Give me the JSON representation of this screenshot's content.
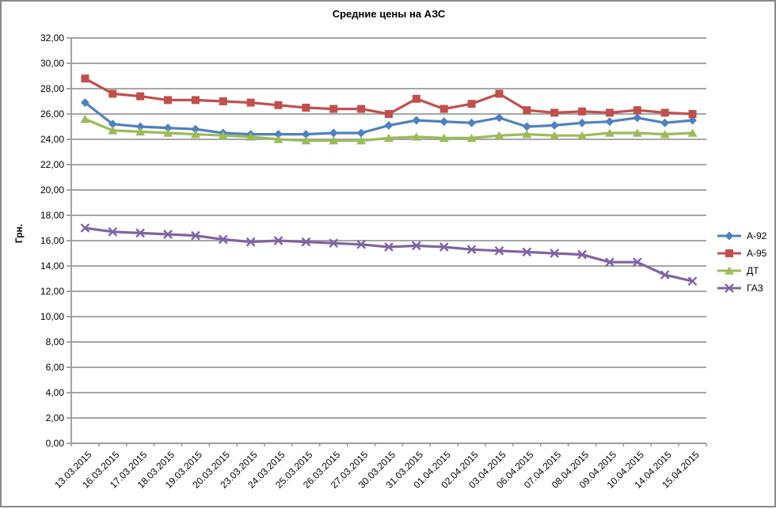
{
  "chart_data": {
    "type": "line",
    "title": "Средние цены на АЗС",
    "ylabel": "Грн.",
    "ylim": [
      0,
      32
    ],
    "ytick_step": 2,
    "decimal_format": "comma",
    "grid": true,
    "legend_position": "right",
    "categories": [
      "13.03.2015",
      "16.03.2015",
      "17.03.2015",
      "18.03.2015",
      "19.03.2015",
      "20.03.2015",
      "23.03.2015",
      "24.03.2015",
      "25.03.2015",
      "26.03.2015",
      "27.03.2015",
      "30.03.2015",
      "31.03.2015",
      "01.04.2015",
      "02.04.2015",
      "03.04.2015",
      "06.04.2015",
      "07.04.2015",
      "08.04.2015",
      "09.04.2015",
      "10.04.2015",
      "14.04.2015",
      "15.04.2015"
    ],
    "series": [
      {
        "id": "a92",
        "name": "А-92",
        "color": "#4F81BD",
        "marker": "diamond",
        "values": [
          26.9,
          25.2,
          25.0,
          24.9,
          24.8,
          24.5,
          24.4,
          24.4,
          24.4,
          24.5,
          24.5,
          25.1,
          25.5,
          25.4,
          25.3,
          25.7,
          25.0,
          25.1,
          25.3,
          25.4,
          25.7,
          25.3,
          25.5
        ]
      },
      {
        "id": "a95",
        "name": "А-95",
        "color": "#C0504D",
        "marker": "square",
        "values": [
          28.8,
          27.6,
          27.4,
          27.1,
          27.1,
          27.0,
          26.9,
          26.7,
          26.5,
          26.4,
          26.4,
          26.0,
          27.2,
          26.4,
          26.8,
          27.6,
          26.3,
          26.1,
          26.2,
          26.1,
          26.3,
          26.1,
          26.0
        ]
      },
      {
        "id": "dt",
        "name": "ДТ",
        "color": "#9BBB59",
        "marker": "triangle",
        "values": [
          25.6,
          24.7,
          24.6,
          24.5,
          24.4,
          24.3,
          24.2,
          24.0,
          23.9,
          23.9,
          23.9,
          24.1,
          24.2,
          24.1,
          24.1,
          24.3,
          24.4,
          24.3,
          24.3,
          24.5,
          24.5,
          24.4,
          24.5
        ]
      },
      {
        "id": "gaz",
        "name": "ГАЗ",
        "color": "#8064A2",
        "marker": "x",
        "values": [
          17.0,
          16.7,
          16.6,
          16.5,
          16.4,
          16.1,
          15.9,
          16.0,
          15.9,
          15.8,
          15.7,
          15.5,
          15.6,
          15.5,
          15.3,
          15.2,
          15.1,
          15.0,
          14.9,
          14.3,
          14.3,
          13.3,
          12.8
        ]
      }
    ]
  },
  "colors": {
    "gridline": "#999999",
    "axis_line": "#999999",
    "axis_text": "#000000",
    "outer_border": "#8a8a8a",
    "background": "#ffffff"
  }
}
